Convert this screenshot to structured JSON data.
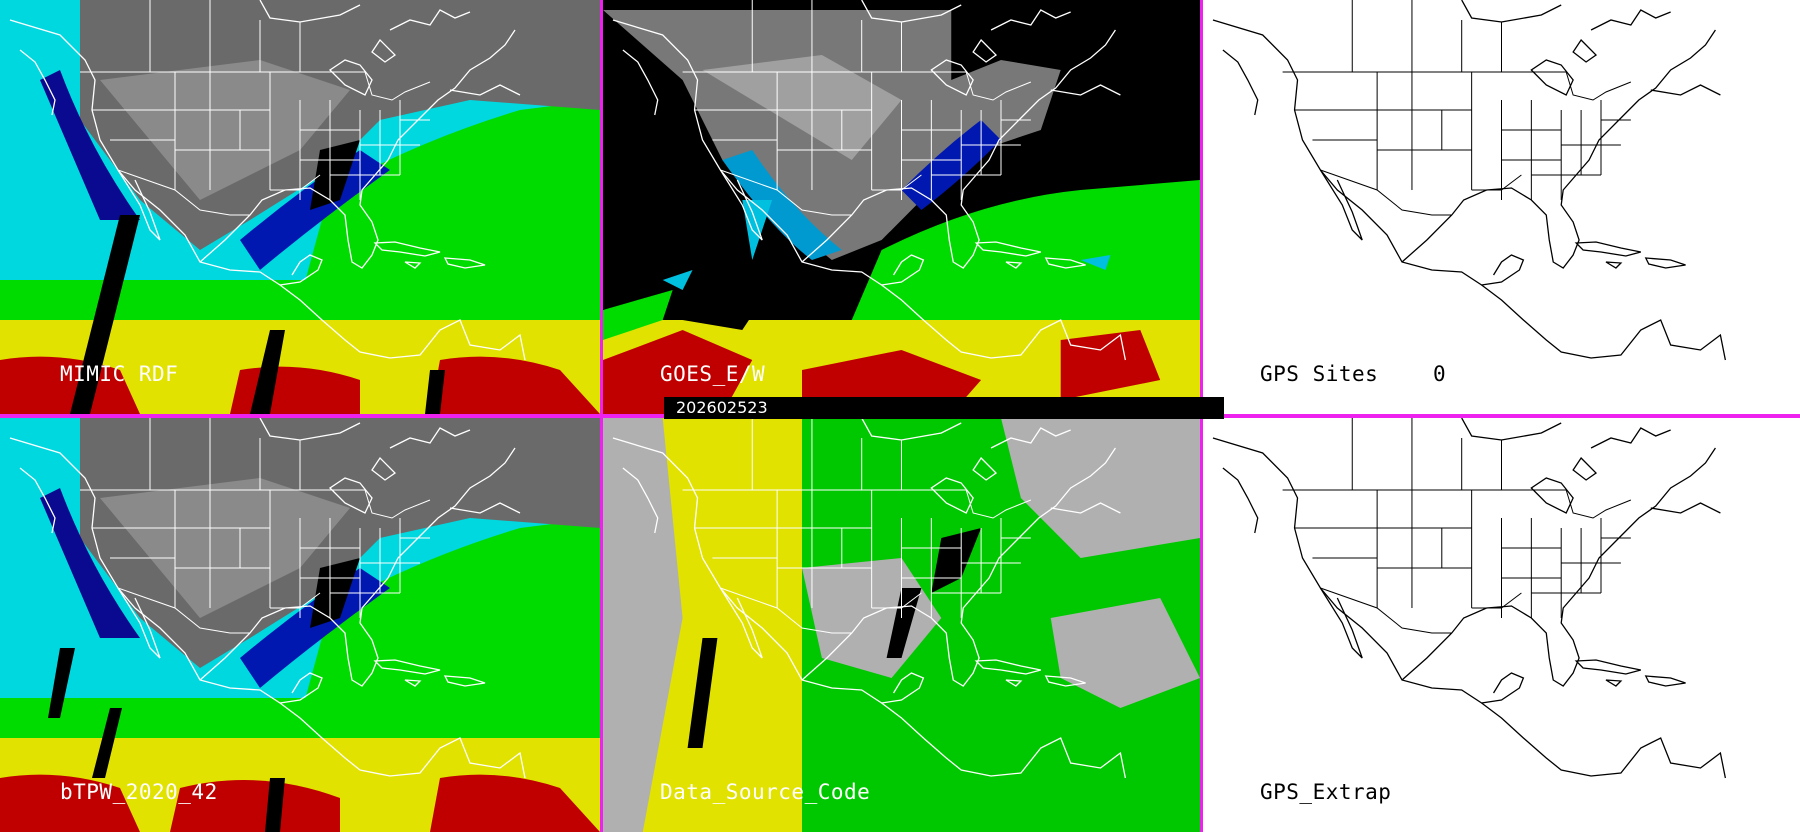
{
  "panels": {
    "mimic": {
      "label": "MIMIC RDF"
    },
    "goes": {
      "label": "GOES_E/W"
    },
    "gps_sites": {
      "label": "GPS Sites",
      "count": "0"
    },
    "btpw": {
      "label": "bTPW_2020_42"
    },
    "source": {
      "label": "Data_Source_Code"
    },
    "gps_extrap": {
      "label": "GPS_Extrap"
    }
  },
  "timestamp": "202602523",
  "colors": {
    "divider": "#ee22ee",
    "tpw_scale": [
      "#505050",
      "#9a9a9a",
      "#00008a",
      "#2828d0",
      "#00e0e0",
      "#00e000",
      "#e0e000",
      "#c80000"
    ],
    "source_codes": [
      "#b0b0b0",
      "#e2e200",
      "#00c800",
      "#000000"
    ]
  }
}
